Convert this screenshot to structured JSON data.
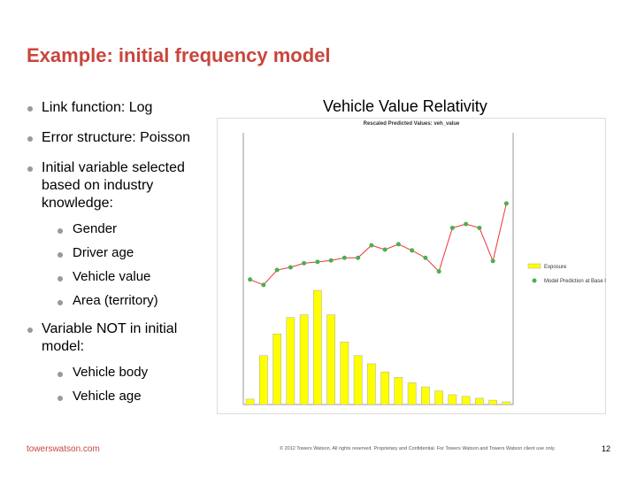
{
  "title": "Example: initial frequency model",
  "bullets": [
    {
      "text": "Link function: Log"
    },
    {
      "text": "Error structure: Poisson"
    },
    {
      "text": "Initial variable selected based on industry knowledge:",
      "sub": [
        "Gender",
        "Driver age",
        "Vehicle value",
        "Area (territory)"
      ]
    },
    {
      "text": "Variable NOT in initial model:",
      "sub": [
        "Vehicle body",
        "Vehicle age"
      ]
    }
  ],
  "chart_heading": "Vehicle Value Relativity",
  "chart_data": {
    "type": "bar-line",
    "title": "Rescaled Predicted Values: veh_value",
    "categories": [
      null,
      null,
      null,
      null,
      null,
      null,
      null,
      null,
      null,
      null,
      null,
      null,
      null,
      null,
      null,
      null,
      null,
      null,
      null,
      null
    ],
    "ylim": [
      0,
      100
    ],
    "y2lim": [
      0,
      100
    ],
    "series": [
      {
        "name": "Exposure",
        "color": "#ffff00",
        "values": [
          2,
          18,
          26,
          32,
          33,
          42,
          33,
          23,
          18,
          15,
          12,
          10,
          8,
          6.5,
          5,
          3.6,
          3,
          2.3,
          1.6,
          1
        ]
      },
      {
        "name": "Model Prediction at Base levels",
        "color": "#4caf50",
        "axis": "y2",
        "values": [
          46,
          44,
          49.5,
          50.5,
          52,
          52.5,
          53,
          54,
          54,
          58.6,
          57,
          59,
          56.7,
          54,
          49,
          65,
          66.4,
          65,
          52.8,
          74
        ]
      }
    ]
  },
  "footer": {
    "brand": "towerswatson.com",
    "copyright": "© 2012 Towers Watson. All rights reserved. Proprietary and Confidential. For Towers Watson and Towers Watson client use only.",
    "page": "12"
  }
}
